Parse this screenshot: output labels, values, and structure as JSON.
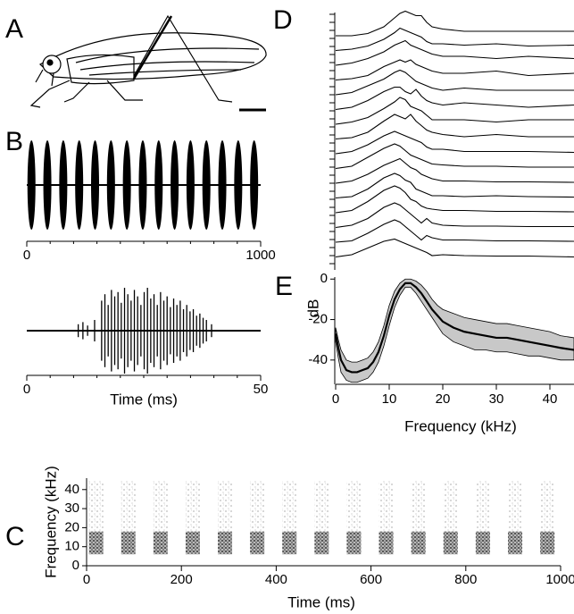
{
  "chart_data": [
    {
      "type": "illustration",
      "panel_label": "A"
    },
    {
      "type": "oscillogram",
      "panel_label": "B",
      "x": [
        20,
        88,
        156,
        224,
        292,
        360,
        428,
        496,
        564,
        632,
        700,
        768,
        836,
        904,
        972
      ],
      "xlim": [
        0,
        1000
      ],
      "xticks": [
        0,
        1000
      ]
    },
    {
      "type": "oscillogram",
      "x": [
        11,
        12,
        13,
        14.5,
        16,
        16.7,
        17.4,
        18.1,
        18.8,
        19.5,
        20.2,
        20.9,
        21.6,
        22.3,
        23,
        23.7,
        24.4,
        25.1,
        25.8,
        26.5,
        27.2,
        27.9,
        28.6,
        29.3,
        30,
        30.7,
        31.4,
        32.1,
        32.8,
        33.5,
        34.2,
        34.9,
        35.6,
        36.3,
        37,
        37.7,
        38.4,
        39.5
      ],
      "values": [
        0.15,
        0.2,
        0.12,
        0.25,
        0.7,
        0.85,
        0.6,
        0.95,
        0.8,
        0.9,
        0.65,
        1,
        0.85,
        0.7,
        0.95,
        0.8,
        0.6,
        0.9,
        1,
        0.75,
        0.85,
        0.6,
        0.9,
        0.7,
        0.8,
        0.55,
        0.75,
        0.6,
        0.7,
        0.5,
        0.6,
        0.45,
        0.5,
        0.35,
        0.4,
        0.3,
        0.25,
        0.15
      ],
      "xlim": [
        0,
        50
      ],
      "xticks": [
        0,
        50
      ],
      "xlabel": "Time (ms)"
    },
    {
      "type": "spectrogram",
      "panel_label": "C",
      "x": [
        20,
        88,
        156,
        224,
        292,
        360,
        428,
        496,
        564,
        632,
        700,
        768,
        836,
        904,
        972
      ],
      "dense_band": [
        6,
        18
      ],
      "faint_band": [
        18,
        45
      ],
      "xlim": [
        0,
        1000
      ],
      "ylim": [
        0,
        46
      ],
      "xticks": [
        0,
        200,
        400,
        600,
        800,
        1000
      ],
      "yticks": [
        0,
        10,
        20,
        30,
        40
      ],
      "xlabel": "Time (ms)",
      "ylabel": "Frequency (kHz)"
    },
    {
      "type": "spectra",
      "panel_label": "D",
      "x": [
        0,
        3,
        6,
        9,
        11,
        12,
        13,
        14,
        15,
        16,
        17,
        18,
        20,
        24,
        30,
        36,
        44.5
      ],
      "series": [
        {
          "values": [
            0,
            0,
            0.5,
            2,
            4,
            5,
            5.5,
            5,
            4.5,
            4.5,
            3,
            2,
            1.5,
            1,
            1,
            1,
            1
          ]
        },
        {
          "values": [
            0,
            0.3,
            1,
            2.5,
            4,
            5,
            4.5,
            4,
            3.5,
            3,
            2,
            1.5,
            1.5,
            1.2,
            1.5,
            1,
            1.2
          ]
        },
        {
          "values": [
            0,
            0.5,
            1.5,
            3,
            4.5,
            5,
            5.5,
            4.5,
            4,
            3.5,
            3,
            2.5,
            2,
            2,
            1.5,
            2,
            1.5
          ]
        },
        {
          "values": [
            0,
            0.3,
            1,
            3,
            4,
            4.5,
            4,
            4.5,
            3.5,
            3,
            2.5,
            2,
            1.5,
            1.5,
            2,
            1,
            1.5
          ]
        },
        {
          "values": [
            0,
            0.5,
            2,
            3.5,
            5,
            5.5,
            5,
            4,
            3,
            2.5,
            2,
            1.5,
            1,
            1.5,
            1,
            1,
            1
          ]
        },
        {
          "values": [
            0,
            0.5,
            2,
            4,
            5,
            5,
            4,
            3.5,
            4.5,
            3,
            2,
            1.5,
            1,
            1.5,
            1,
            0.5,
            1
          ]
        },
        {
          "values": [
            0,
            0.5,
            1.5,
            3.5,
            5,
            6,
            5.5,
            4,
            3.5,
            3,
            2,
            1,
            1,
            1,
            0.5,
            1,
            1
          ]
        },
        {
          "values": [
            0,
            0.3,
            1.5,
            4,
            5.5,
            5,
            4.5,
            5.5,
            4,
            3,
            2,
            1.5,
            1,
            0.5,
            1,
            0.5,
            0.5
          ]
        },
        {
          "values": [
            0,
            0.5,
            2,
            4,
            5,
            4.5,
            4,
            3.5,
            3,
            2.5,
            1.5,
            1,
            1,
            0.5,
            0.5,
            0.5,
            0.3
          ]
        },
        {
          "values": [
            0,
            0.5,
            2.5,
            4.5,
            5.5,
            5,
            4,
            3,
            2.5,
            2,
            1.5,
            1,
            0.8,
            0.5,
            0.5,
            0.3,
            0.3
          ]
        },
        {
          "values": [
            0,
            0.5,
            2,
            4,
            5,
            5.5,
            4.5,
            3.5,
            3,
            2,
            1.5,
            1,
            0.5,
            0.5,
            0.3,
            0.3,
            0.2
          ]
        },
        {
          "values": [
            0,
            0.3,
            2,
            4.5,
            5.5,
            5,
            4,
            3.5,
            2,
            1.5,
            1,
            0.5,
            0.5,
            0.3,
            0.5,
            0.3,
            0.2
          ]
        },
        {
          "values": [
            0,
            0.5,
            2.5,
            5,
            6,
            5.5,
            4.5,
            3,
            2.5,
            1.5,
            1,
            0.8,
            0.5,
            0.5,
            0.3,
            0.3,
            0.2
          ]
        },
        {
          "values": [
            0,
            0.5,
            2,
            4.5,
            5.5,
            5,
            4,
            3,
            2,
            1,
            2,
            1,
            0.5,
            0.3,
            0.3,
            0.2,
            0.2
          ]
        },
        {
          "values": [
            0,
            0.3,
            2,
            4,
            5,
            4.5,
            3.5,
            2.5,
            1.5,
            0.5,
            1.5,
            1,
            0.5,
            0.5,
            0.3,
            0.3,
            0.2
          ]
        },
        {
          "values": [
            0,
            0.5,
            2,
            3.5,
            4,
            3.5,
            3,
            2.5,
            2,
            1.5,
            1,
            0.3,
            0.5,
            0.3,
            0.2,
            0.2,
            0
          ]
        }
      ]
    },
    {
      "type": "line",
      "panel_label": "E",
      "x": [
        0,
        0.5,
        1,
        2,
        3,
        4,
        5,
        6,
        7,
        8,
        9,
        10,
        11,
        12,
        13,
        14,
        15,
        16,
        17,
        18,
        19,
        20,
        22,
        24,
        26,
        28,
        30,
        32,
        34,
        36,
        38,
        40,
        42,
        44.5
      ],
      "values": [
        -27,
        -34,
        -40,
        -45,
        -46,
        -46,
        -45,
        -44,
        -41,
        -36,
        -28,
        -18,
        -10,
        -5,
        -2,
        -2,
        -4,
        -7,
        -11,
        -15,
        -18,
        -21,
        -24,
        -26,
        -27,
        -28,
        -29,
        -29,
        -30,
        -31,
        -32,
        -33,
        -34,
        -35
      ],
      "lower": [
        -31,
        -39,
        -46,
        -50,
        -51,
        -51,
        -50,
        -49,
        -46,
        -41,
        -33,
        -23,
        -14,
        -8,
        -4,
        -4,
        -7,
        -11,
        -15,
        -19,
        -23,
        -27,
        -31,
        -33,
        -35,
        -35,
        -36,
        -36,
        -37,
        -38,
        -38,
        -39,
        -40,
        -40
      ],
      "upper": [
        -24,
        -30,
        -35,
        -40,
        -41,
        -41,
        -40,
        -39,
        -36,
        -31,
        -23,
        -13,
        -6,
        -2,
        0,
        0,
        -1,
        -3,
        -6,
        -10,
        -13,
        -15,
        -17,
        -19,
        -20,
        -21,
        -22,
        -22,
        -23,
        -24,
        -25,
        -26,
        -28,
        -29
      ],
      "xlim": [
        0,
        44.5
      ],
      "ylim": [
        -52,
        1
      ],
      "xticks": [
        0,
        10,
        20,
        30,
        40
      ],
      "yticks": [
        0,
        -20,
        -40
      ],
      "xlabel": "Frequency (kHz)",
      "ylabel": "dB"
    }
  ]
}
